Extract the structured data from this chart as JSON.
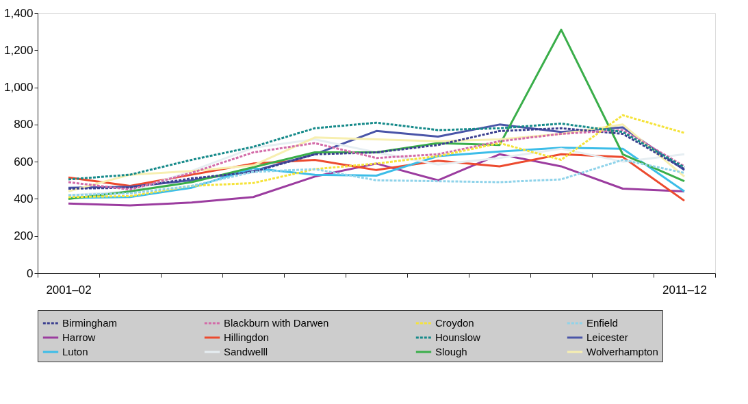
{
  "chart_data": {
    "type": "line",
    "categories": [
      "2001–02",
      null,
      null,
      null,
      null,
      null,
      null,
      null,
      null,
      null,
      "2011–12"
    ],
    "ylim": [
      0,
      1400
    ],
    "yticks": [
      {
        "value": 0,
        "label": "0"
      },
      {
        "value": 200,
        "label": "200"
      },
      {
        "value": 400,
        "label": "400"
      },
      {
        "value": 600,
        "label": "600"
      },
      {
        "value": 800,
        "label": "800"
      },
      {
        "value": 1000,
        "label": "1,000"
      },
      {
        "value": 1200,
        "label": "1,200"
      },
      {
        "value": 1400,
        "label": "1,400"
      }
    ],
    "grid": false,
    "legend": "bottom",
    "marker": "none",
    "series": [
      {
        "name": "Birmingham",
        "color": "#3b3f8f",
        "line_style": "dashed",
        "values": [
          455,
          460,
          510,
          545,
          640,
          650,
          690,
          765,
          780,
          750,
          560
        ]
      },
      {
        "name": "Blackburn with Darwen",
        "color": "#d36ba8",
        "line_style": "dashed",
        "values": [
          490,
          450,
          540,
          650,
          700,
          620,
          640,
          710,
          750,
          770,
          575
        ]
      },
      {
        "name": "Croydon",
        "color": "#f5e33a",
        "line_style": "dashed",
        "values": [
          410,
          415,
          470,
          485,
          560,
          590,
          630,
          700,
          610,
          850,
          755
        ]
      },
      {
        "name": "Enfield",
        "color": "#8fd3ea",
        "line_style": "dashed",
        "values": [
          420,
          430,
          470,
          545,
          560,
          500,
          495,
          490,
          505,
          610,
          540
        ]
      },
      {
        "name": "Harrow",
        "color": "#9b3c9f",
        "line_style": "solid",
        "values": [
          375,
          365,
          380,
          410,
          520,
          590,
          500,
          640,
          575,
          455,
          440
        ]
      },
      {
        "name": "Hillingdon",
        "color": "#ec4a2e",
        "line_style": "solid",
        "values": [
          515,
          470,
          530,
          590,
          610,
          555,
          605,
          575,
          640,
          625,
          390
        ]
      },
      {
        "name": "Hounslow",
        "color": "#168a8a",
        "line_style": "dashed",
        "values": [
          505,
          530,
          610,
          680,
          780,
          810,
          770,
          780,
          805,
          760,
          570
        ]
      },
      {
        "name": "Leicester",
        "color": "#4a55a8",
        "line_style": "solid",
        "values": [
          460,
          465,
          500,
          550,
          640,
          765,
          735,
          800,
          760,
          785,
          555
        ]
      },
      {
        "name": "Luton",
        "color": "#3cbde8",
        "line_style": "solid",
        "values": [
          405,
          410,
          460,
          565,
          530,
          525,
          630,
          655,
          675,
          670,
          440
        ]
      },
      {
        "name": "Sandwelll",
        "color": "#e6eef2",
        "line_style": "solid",
        "values": [
          420,
          440,
          550,
          675,
          720,
          650,
          585,
          620,
          670,
          600,
          640
        ]
      },
      {
        "name": "Slough",
        "color": "#3aae4a",
        "line_style": "solid",
        "values": [
          400,
          440,
          490,
          570,
          650,
          650,
          700,
          690,
          1310,
          640,
          495
        ]
      },
      {
        "name": "Wolverhampton",
        "color": "#f7efb0",
        "line_style": "solid",
        "values": [
          440,
          530,
          550,
          580,
          730,
          720,
          710,
          720,
          750,
          800,
          520
        ]
      }
    ]
  }
}
